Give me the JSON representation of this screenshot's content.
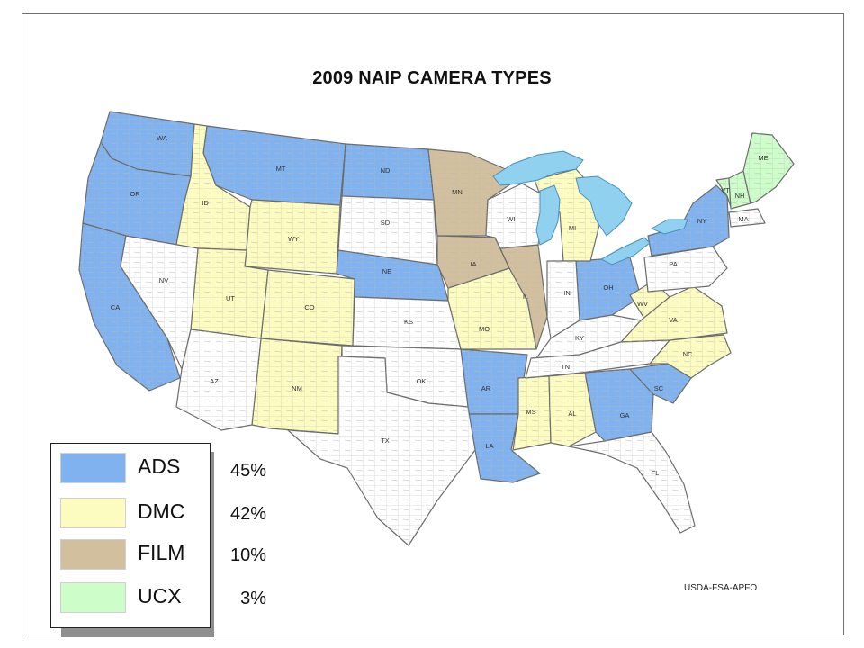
{
  "title": "2009 NAIP CAMERA TYPES",
  "credit": "USDA-FSA-APFO",
  "colors": {
    "ADS": "#7fb2ee",
    "DMC": "#fdfcc0",
    "FILM": "#d2bf9d",
    "UCX": "#cdfdc9",
    "none": "#ffffff",
    "lakes": "#8fd1ef",
    "county_lines": "#b9b9b9",
    "state_lines": "#6b6b6b"
  },
  "legend": [
    {
      "name": "ADS",
      "percent": "45%"
    },
    {
      "name": "DMC",
      "percent": "42%"
    },
    {
      "name": "FILM",
      "percent": "10%"
    },
    {
      "name": "UCX",
      "percent": "3%"
    }
  ],
  "states": [
    {
      "abbr": "WA",
      "type": "ADS"
    },
    {
      "abbr": "OR",
      "type": "ADS"
    },
    {
      "abbr": "CA",
      "type": "ADS"
    },
    {
      "abbr": "MT",
      "type": "ADS"
    },
    {
      "abbr": "ND",
      "type": "ADS"
    },
    {
      "abbr": "NE",
      "type": "ADS"
    },
    {
      "abbr": "AR",
      "type": "ADS"
    },
    {
      "abbr": "LA",
      "type": "ADS"
    },
    {
      "abbr": "OH",
      "type": "ADS"
    },
    {
      "abbr": "NY",
      "type": "ADS"
    },
    {
      "abbr": "GA",
      "type": "ADS"
    },
    {
      "abbr": "SC",
      "type": "ADS"
    },
    {
      "abbr": "ID",
      "type": "DMC"
    },
    {
      "abbr": "WY",
      "type": "DMC"
    },
    {
      "abbr": "UT",
      "type": "DMC"
    },
    {
      "abbr": "CO",
      "type": "DMC"
    },
    {
      "abbr": "NM",
      "type": "DMC"
    },
    {
      "abbr": "MO",
      "type": "DMC"
    },
    {
      "abbr": "MI",
      "type": "DMC"
    },
    {
      "abbr": "MS",
      "type": "DMC"
    },
    {
      "abbr": "AL",
      "type": "DMC"
    },
    {
      "abbr": "WV",
      "type": "DMC"
    },
    {
      "abbr": "VA",
      "type": "DMC"
    },
    {
      "abbr": "NC",
      "type": "DMC"
    },
    {
      "abbr": "MN",
      "type": "FILM"
    },
    {
      "abbr": "IA",
      "type": "FILM"
    },
    {
      "abbr": "IL",
      "type": "FILM"
    },
    {
      "abbr": "VT",
      "type": "UCX"
    },
    {
      "abbr": "NH",
      "type": "UCX"
    },
    {
      "abbr": "ME",
      "type": "UCX"
    },
    {
      "abbr": "NV",
      "type": "none"
    },
    {
      "abbr": "AZ",
      "type": "none"
    },
    {
      "abbr": "SD",
      "type": "none"
    },
    {
      "abbr": "KS",
      "type": "none"
    },
    {
      "abbr": "OK",
      "type": "none"
    },
    {
      "abbr": "TX",
      "type": "none"
    },
    {
      "abbr": "WI",
      "type": "none"
    },
    {
      "abbr": "IN",
      "type": "none"
    },
    {
      "abbr": "KY",
      "type": "none"
    },
    {
      "abbr": "TN",
      "type": "none"
    },
    {
      "abbr": "FL",
      "type": "none"
    },
    {
      "abbr": "PA",
      "type": "none"
    },
    {
      "abbr": "MA",
      "type": "none"
    }
  ]
}
